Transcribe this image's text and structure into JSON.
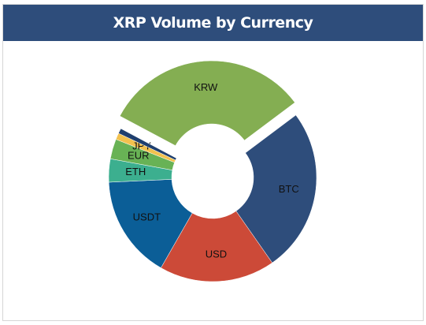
{
  "chart_data": {
    "type": "donut",
    "title": "XRP Volume by Currency",
    "categories": [
      "KRW",
      "BTC",
      "USD",
      "USDT",
      "ETH",
      "EUR",
      "JPY",
      null
    ],
    "values": [
      32,
      25.5,
      18,
      16,
      3.6,
      3.1,
      1,
      0.8
    ],
    "colors": [
      "#84ae52",
      "#2e4d7b",
      "#cc4a38",
      "#0b5e97",
      "#3caf8f",
      "#68b255",
      "#f2c14e",
      "#1f3f6e"
    ],
    "exploded": [
      0
    ]
  }
}
